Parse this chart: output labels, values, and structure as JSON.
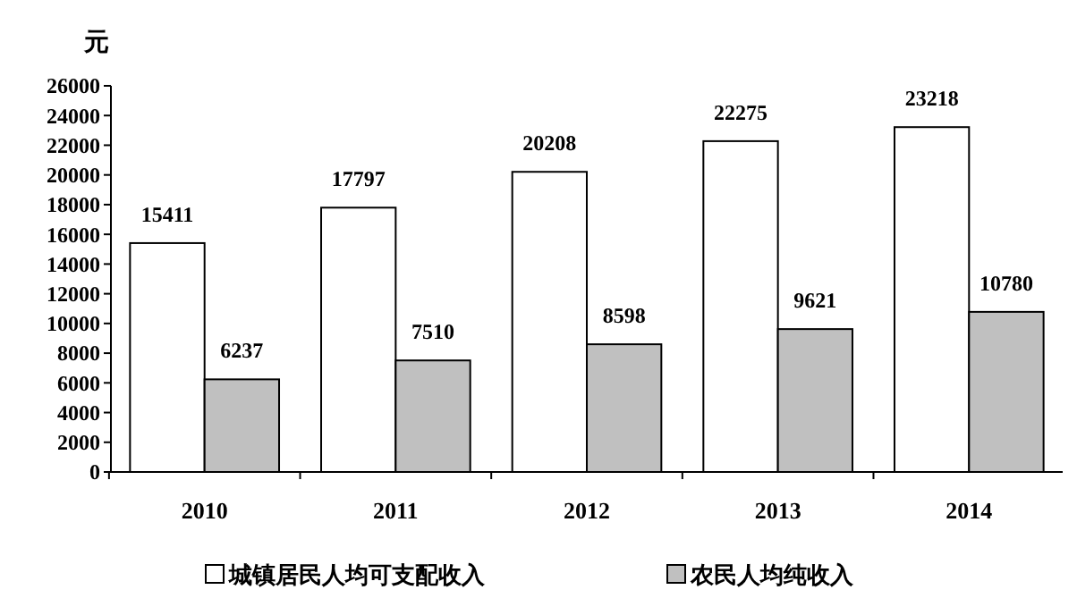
{
  "chart_data": {
    "type": "bar",
    "ylabel": "元",
    "categories": [
      "2010",
      "2011",
      "2012",
      "2013",
      "2014"
    ],
    "series": [
      {
        "name": "城镇居民人均可支配收入",
        "color": "#ffffff",
        "values": [
          15411,
          17797,
          20208,
          22275,
          23218
        ]
      },
      {
        "name": "农民人均纯收入",
        "color": "#c0c0c0",
        "values": [
          6237,
          7510,
          8598,
          9621,
          10780
        ]
      }
    ],
    "ylim": [
      0,
      26000
    ],
    "yticks": [
      0,
      2000,
      4000,
      6000,
      8000,
      10000,
      12000,
      14000,
      16000,
      18000,
      20000,
      22000,
      24000,
      26000
    ],
    "data_labels": true,
    "legend": "bottom",
    "grid": false
  }
}
